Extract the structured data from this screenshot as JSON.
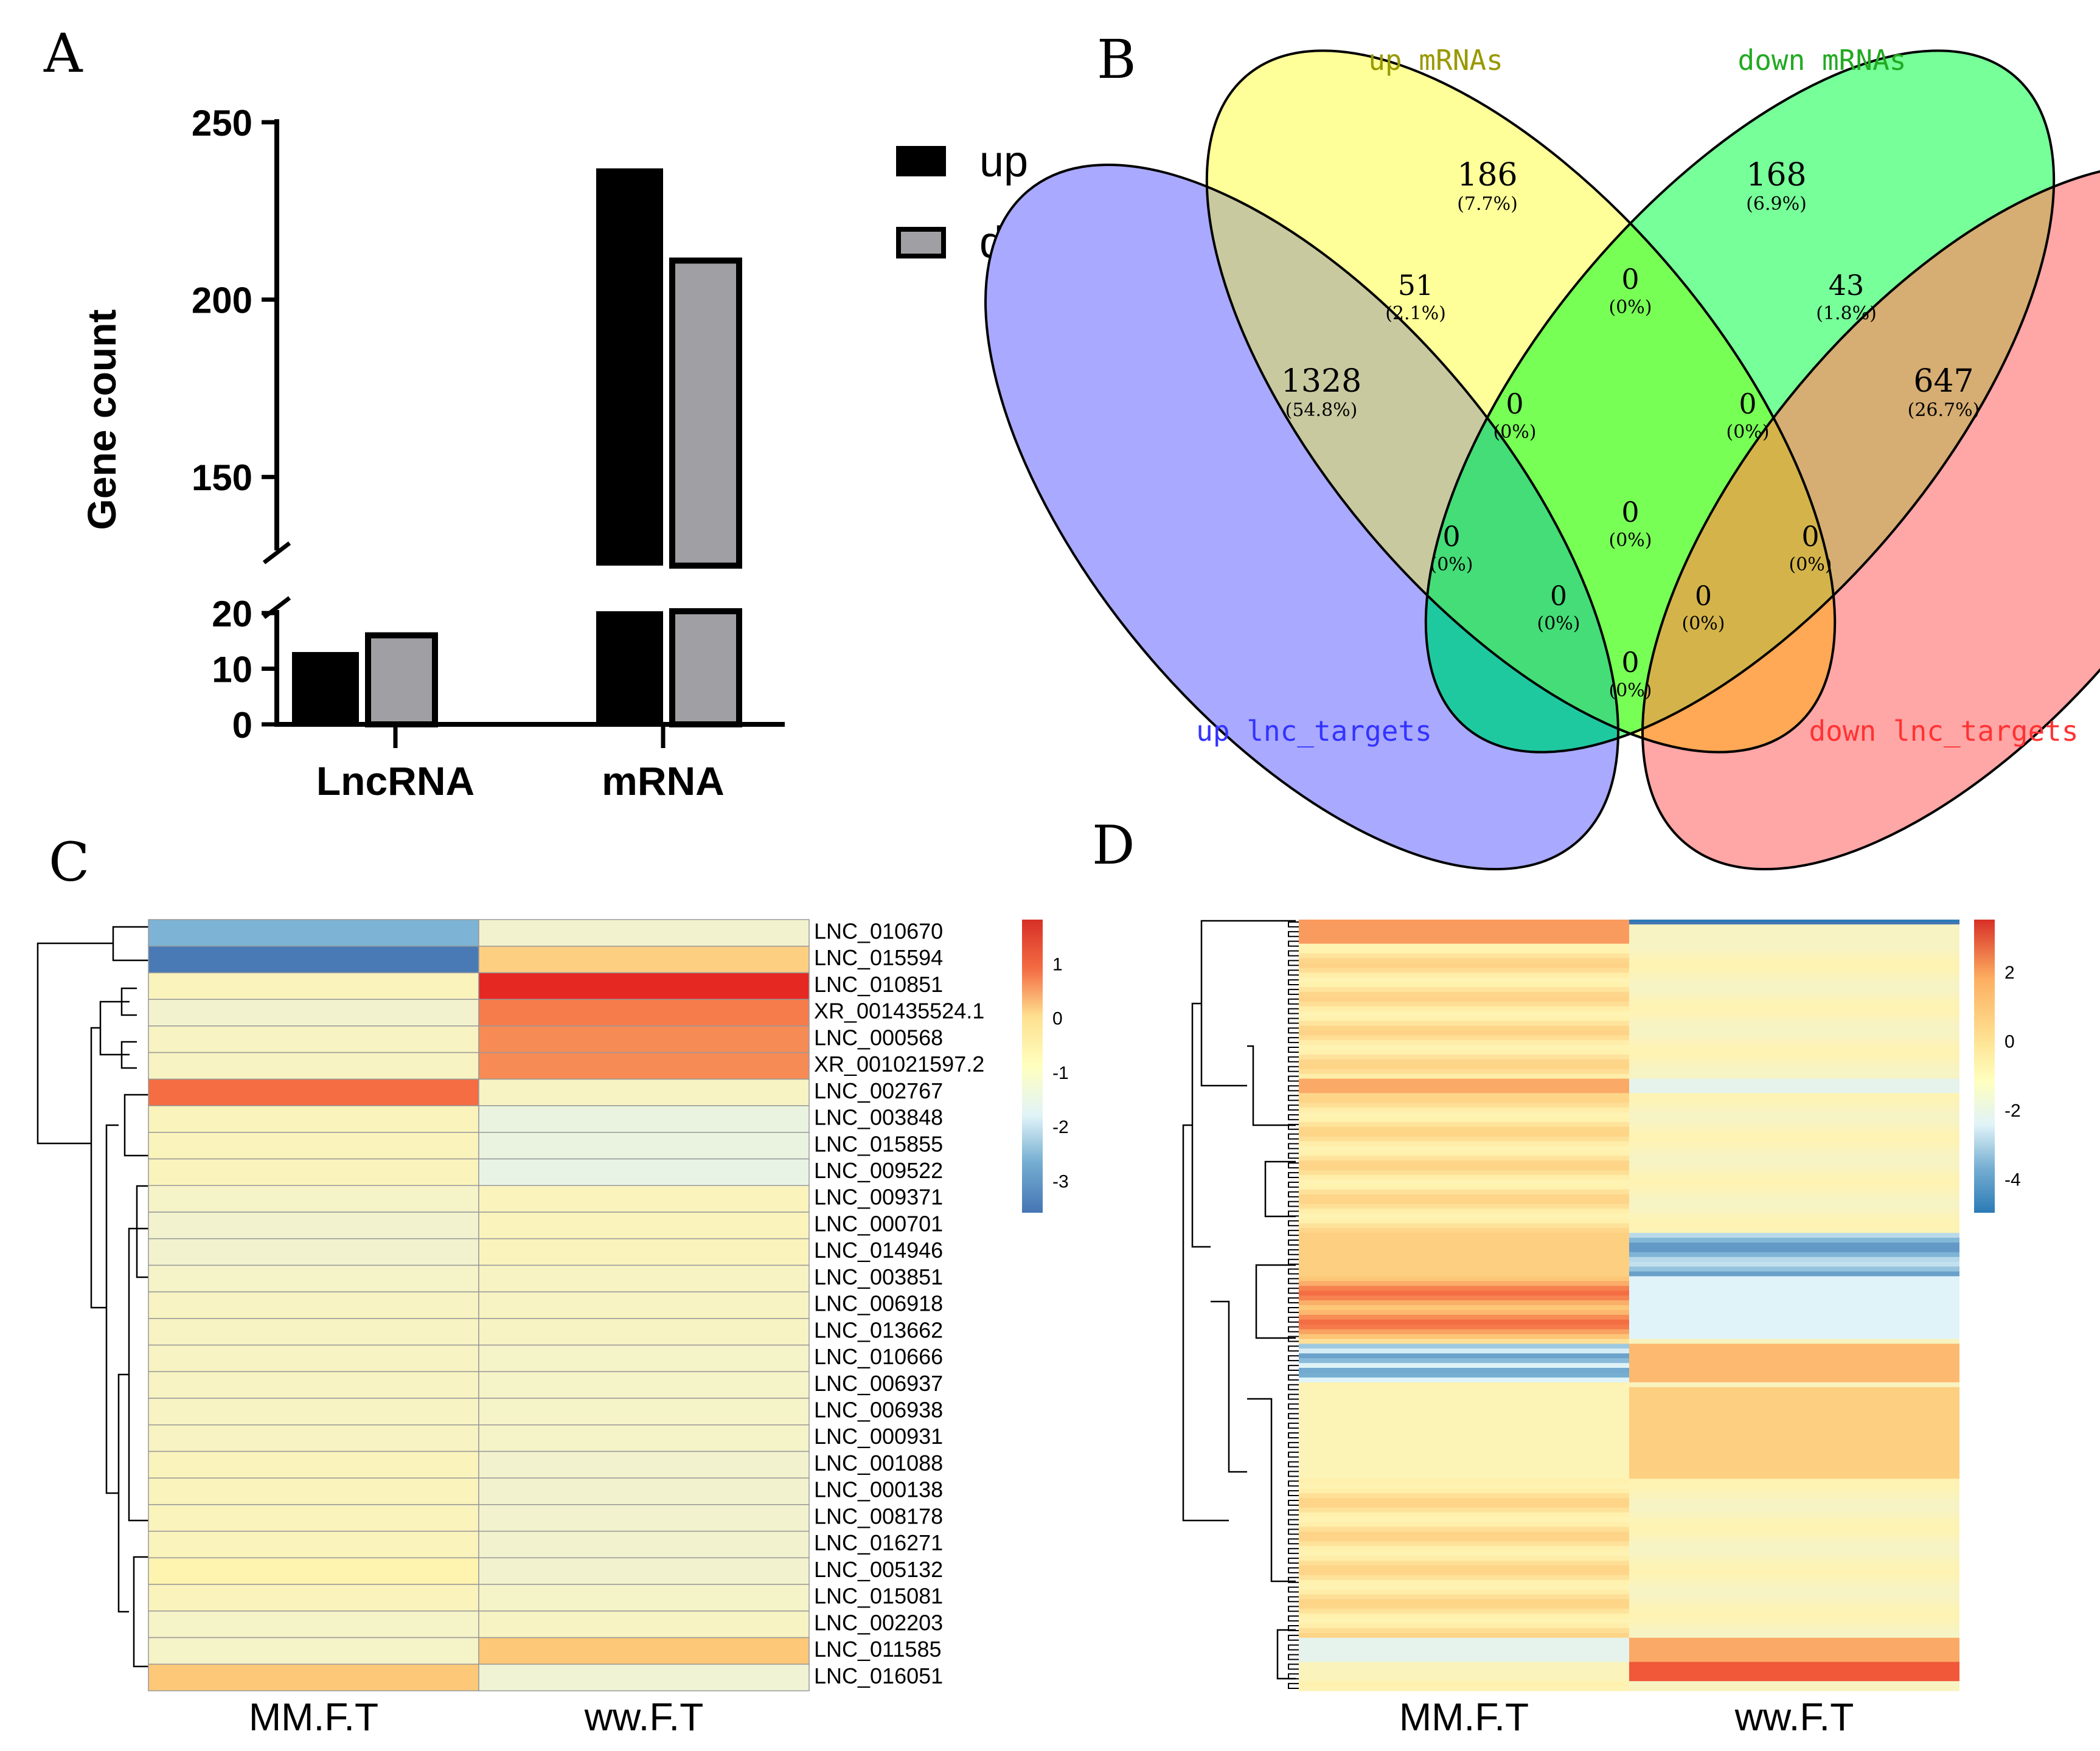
{
  "panel_labels": {
    "a": "A",
    "b": "B",
    "c": "C",
    "d": "D"
  },
  "chart_data": [
    {
      "id": "A",
      "type": "bar",
      "ylabel": "Gene count",
      "categories": [
        "LncRNA",
        "mRNA"
      ],
      "series": [
        {
          "name": "up",
          "color": "#000000",
          "values": [
            13,
            237
          ]
        },
        {
          "name": "down",
          "color": "#a09fa3",
          "values": [
            16,
            211
          ]
        }
      ],
      "axis_break": {
        "lower": [
          0,
          20
        ],
        "upper": [
          125,
          250
        ]
      },
      "yticks_lower": [
        "0",
        "10",
        "20"
      ],
      "yticks_upper": [
        "150",
        "200",
        "250"
      ]
    },
    {
      "id": "B",
      "type": "venn",
      "sets": [
        {
          "name": "up lnc_targets",
          "color": "#3333ff"
        },
        {
          "name": "up mRNAs",
          "color": "#999900"
        },
        {
          "name": "down mRNAs",
          "color": "#22aa22"
        },
        {
          "name": "down lnc_targets",
          "color": "#ff3333"
        }
      ],
      "regions": [
        {
          "count": "1328",
          "pct": "(54.8%)"
        },
        {
          "count": "186",
          "pct": "(7.7%)"
        },
        {
          "count": "168",
          "pct": "(6.9%)"
        },
        {
          "count": "647",
          "pct": "(26.7%)"
        },
        {
          "count": "51",
          "pct": "(2.1%)"
        },
        {
          "count": "43",
          "pct": "(1.8%)"
        },
        {
          "count": "0",
          "pct": "(0%)"
        },
        {
          "count": "0",
          "pct": "(0%)"
        },
        {
          "count": "0",
          "pct": "(0%)"
        },
        {
          "count": "0",
          "pct": "(0%)"
        },
        {
          "count": "0",
          "pct": "(0%)"
        },
        {
          "count": "0",
          "pct": "(0%)"
        },
        {
          "count": "0",
          "pct": "(0%)"
        },
        {
          "count": "0",
          "pct": "(0%)"
        },
        {
          "count": "0",
          "pct": "(0%)"
        }
      ]
    },
    {
      "id": "C",
      "type": "heatmap",
      "columns": [
        "MM.F.T",
        "ww.F.T"
      ],
      "rows": [
        "LNC_010670",
        "LNC_015594",
        "LNC_010851",
        "XR_001435524.1",
        "LNC_000568",
        "XR_001021597.2",
        "LNC_002767",
        "LNC_003848",
        "LNC_015855",
        "LNC_009522",
        "LNC_009371",
        "LNC_000701",
        "LNC_014946",
        "LNC_003851",
        "LNC_006918",
        "LNC_013662",
        "LNC_010666",
        "LNC_006937",
        "LNC_006938",
        "LNC_000931",
        "LNC_001088",
        "LNC_000138",
        "LNC_008178",
        "LNC_016271",
        "LNC_005132",
        "LNC_015081",
        "LNC_002203",
        "LNC_011585",
        "LNC_016051"
      ],
      "values": [
        [
          -2.3,
          -0.5
        ],
        [
          -3.5,
          0.5
        ],
        [
          -0.2,
          1.85
        ],
        [
          -0.5,
          1.1
        ],
        [
          -0.3,
          1.0
        ],
        [
          -0.3,
          1.0
        ],
        [
          1.2,
          -0.3
        ],
        [
          -0.2,
          -0.8
        ],
        [
          -0.2,
          -0.8
        ],
        [
          -0.2,
          -0.9
        ],
        [
          -0.4,
          -0.2
        ],
        [
          -0.5,
          -0.2
        ],
        [
          -0.5,
          -0.2
        ],
        [
          -0.4,
          -0.3
        ],
        [
          -0.3,
          -0.3
        ],
        [
          -0.3,
          -0.3
        ],
        [
          -0.3,
          -0.4
        ],
        [
          -0.3,
          -0.4
        ],
        [
          -0.3,
          -0.4
        ],
        [
          -0.3,
          -0.4
        ],
        [
          -0.2,
          -0.5
        ],
        [
          -0.2,
          -0.5
        ],
        [
          -0.2,
          -0.5
        ],
        [
          -0.2,
          -0.5
        ],
        [
          0.0,
          -0.5
        ],
        [
          -0.2,
          -0.4
        ],
        [
          -0.4,
          -0.3
        ],
        [
          -0.4,
          0.6
        ],
        [
          0.6,
          -0.6
        ]
      ],
      "colorbar": {
        "min": -3.6,
        "max": 1.8,
        "ticks": [
          "1",
          "0",
          "-1",
          "-2",
          "-3"
        ]
      }
    },
    {
      "id": "D",
      "type": "heatmap",
      "columns": [
        "MM.F.T",
        "ww.F.T"
      ],
      "colorbar": {
        "min": -5.0,
        "max": 3.5,
        "ticks": [
          "2",
          "0",
          "-2",
          "-4"
        ]
      }
    }
  ]
}
